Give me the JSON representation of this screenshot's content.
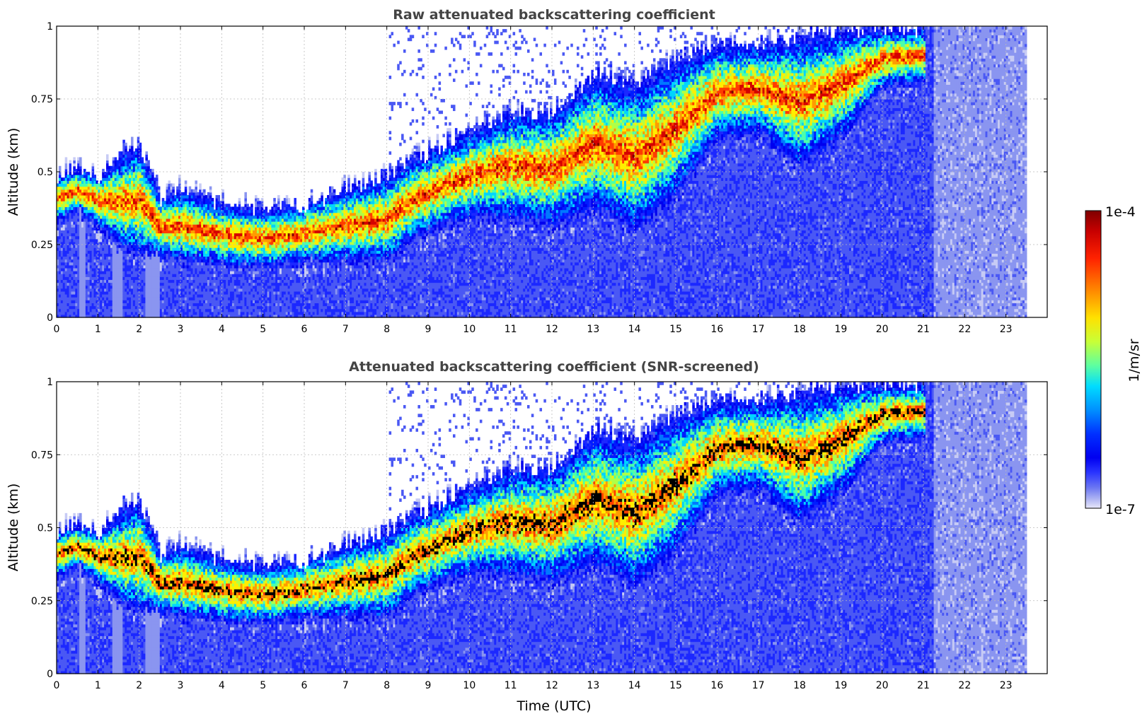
{
  "chart_data": [
    {
      "type": "heatmap",
      "title": "Raw attenuated backscattering coefficient",
      "xlabel": "",
      "ylabel": "Altitude (km)",
      "xlim": [
        0,
        24
      ],
      "ylim": [
        0,
        1
      ],
      "x_ticks": [
        "0",
        "1",
        "2",
        "3",
        "4",
        "5",
        "6",
        "7",
        "8",
        "9",
        "10",
        "11",
        "12",
        "13",
        "14",
        "15",
        "16",
        "17",
        "18",
        "19",
        "20",
        "21",
        "22",
        "23"
      ],
      "y_ticks": [
        "0",
        "0.25",
        "0.5",
        "0.75",
        "1"
      ],
      "grid": true,
      "data_end_hour": 23.5,
      "screened": false
    },
    {
      "type": "heatmap",
      "title": "Attenuated backscattering coefficient (SNR-screened)",
      "xlabel": "Time (UTC)",
      "ylabel": "Altitude (km)",
      "xlim": [
        0,
        24
      ],
      "ylim": [
        0,
        1
      ],
      "x_ticks": [
        "0",
        "1",
        "2",
        "3",
        "4",
        "5",
        "6",
        "7",
        "8",
        "9",
        "10",
        "11",
        "12",
        "13",
        "14",
        "15",
        "16",
        "17",
        "18",
        "19",
        "20",
        "21",
        "22",
        "23"
      ],
      "y_ticks": [
        "0",
        "0.25",
        "0.5",
        "0.75",
        "1"
      ],
      "grid": true,
      "data_end_hour": 23.5,
      "screened": true
    }
  ],
  "colorbar": {
    "label": "1/m/sr",
    "max_label": "1e-4",
    "min_label": "1e-7",
    "scale": "log",
    "range": [
      1e-07,
      0.0001
    ],
    "colormap": "jet",
    "low_color": "#e8e8fa",
    "colors": [
      "#7f0000",
      "#d40000",
      "#ff3c00",
      "#ff9c00",
      "#ffee00",
      "#b0ff47",
      "#4cffaa",
      "#00d4ff",
      "#0078ff",
      "#001dff",
      "#0000ee",
      "#1c28ff",
      "#4a58f4",
      "#8a95f0",
      "#c7cbf5"
    ]
  }
}
